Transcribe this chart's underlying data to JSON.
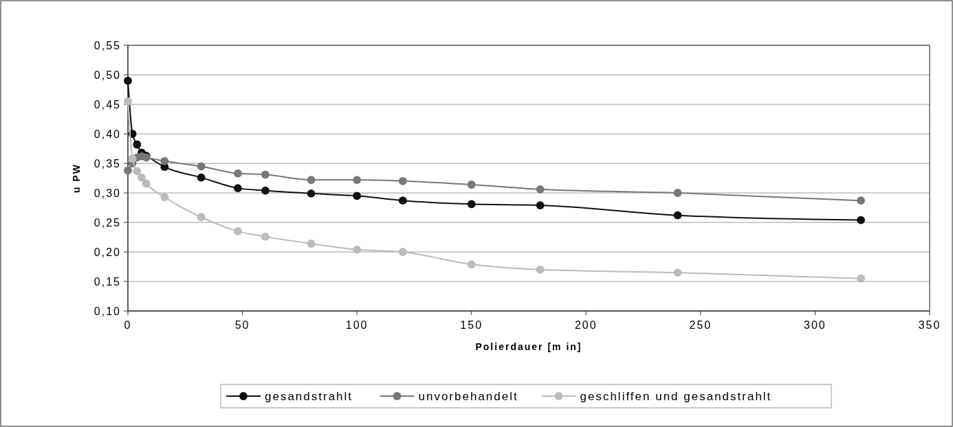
{
  "chart_data": {
    "type": "line",
    "xlabel": "Polierdauer [m in]",
    "ylabel": "u PW",
    "xlim": [
      0,
      350
    ],
    "xticks": [
      0,
      50,
      100,
      150,
      200,
      250,
      300,
      350
    ],
    "ylim": [
      0.1,
      0.55
    ],
    "yticks": [
      {
        "value": 0.1,
        "label": "0,10"
      },
      {
        "value": 0.15,
        "label": "0,15"
      },
      {
        "value": 0.2,
        "label": "0,20"
      },
      {
        "value": 0.25,
        "label": "0,25"
      },
      {
        "value": 0.3,
        "label": "0,30"
      },
      {
        "value": 0.35,
        "label": "0,35"
      },
      {
        "value": 0.4,
        "label": "0,40"
      },
      {
        "value": 0.45,
        "label": "0,45"
      },
      {
        "value": 0.5,
        "label": "0,50"
      },
      {
        "value": 0.55,
        "label": "0,55"
      }
    ],
    "grid": "y",
    "legend": "bottom",
    "marker": "circle",
    "line_style": "solid",
    "x": [
      0,
      2,
      4,
      6,
      8,
      16,
      32,
      48,
      60,
      80,
      100,
      120,
      150,
      180,
      240,
      320
    ],
    "series": [
      {
        "name": "gesandstrahlt",
        "color": "#111111",
        "values": [
          0.49,
          0.4,
          0.382,
          0.368,
          0.363,
          0.344,
          0.326,
          0.308,
          0.304,
          0.299,
          0.295,
          0.287,
          0.281,
          0.279,
          0.262,
          0.254
        ]
      },
      {
        "name": "unvorbehandelt",
        "color": "#777777",
        "values": [
          0.338,
          0.35,
          0.36,
          0.362,
          0.36,
          0.354,
          0.345,
          0.333,
          0.331,
          0.322,
          0.322,
          0.32,
          0.314,
          0.306,
          0.3,
          0.287
        ]
      },
      {
        "name": "geschliffen und gesandstrahlt",
        "color": "#bbbbbb",
        "values": [
          0.455,
          0.358,
          0.337,
          0.326,
          0.316,
          0.293,
          0.259,
          0.235,
          0.226,
          0.214,
          0.204,
          0.2,
          0.179,
          0.17,
          0.165,
          0.155
        ]
      }
    ]
  }
}
